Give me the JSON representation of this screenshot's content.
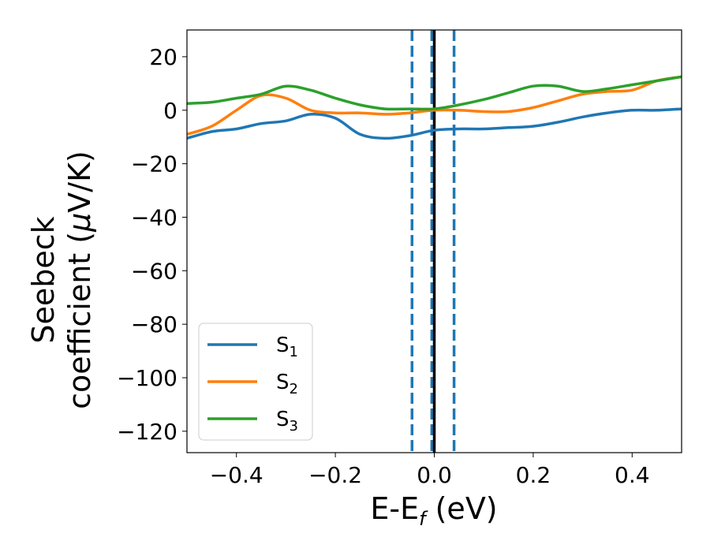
{
  "chart_data": {
    "type": "line",
    "xlabel": {
      "main": "E-E",
      "sub": "f",
      "tail": " (eV)"
    },
    "ylabel": {
      "line1": "Seebeck",
      "line2_prefix": "coefficient  (",
      "mu": "μ",
      "line2_suffix": "V/K)"
    },
    "xlim": [
      -0.5,
      0.5
    ],
    "ylim": [
      -128,
      30
    ],
    "x_ticks": [
      -0.4,
      -0.2,
      0.0,
      0.2,
      0.4
    ],
    "x_tick_labels": [
      "−0.4",
      "−0.2",
      "0.0",
      "0.2",
      "0.4"
    ],
    "y_ticks": [
      20,
      0,
      -20,
      -40,
      -60,
      -80,
      -100,
      -120
    ],
    "y_tick_labels": [
      "20",
      "0",
      "−20",
      "−40",
      "−60",
      "−80",
      "−100",
      "−120"
    ],
    "grid": false,
    "legend_position": "lower-left",
    "vertical_lines": [
      {
        "x": -0.045,
        "style": "dashed",
        "color": "#1f77b4"
      },
      {
        "x": -0.005,
        "style": "dashed",
        "color": "#1f77b4"
      },
      {
        "x": 0.0,
        "style": "solid",
        "color": "#000000"
      },
      {
        "x": 0.04,
        "style": "dashed",
        "color": "#1f77b4"
      }
    ],
    "series": [
      {
        "name": "S",
        "sub": "1",
        "color": "#1f77b4",
        "x": [
          -0.5,
          -0.45,
          -0.4,
          -0.35,
          -0.3,
          -0.25,
          -0.2,
          -0.15,
          -0.1,
          -0.05,
          0.0,
          0.05,
          0.1,
          0.15,
          0.2,
          0.25,
          0.3,
          0.35,
          0.4,
          0.45,
          0.5
        ],
        "y": [
          -10.5,
          -8,
          -7,
          -5,
          -4,
          -1.5,
          -3,
          -9,
          -10.5,
          -9.5,
          -7.5,
          -7,
          -7,
          -6.5,
          -6,
          -4.5,
          -2.5,
          -1,
          0,
          0,
          0.5
        ]
      },
      {
        "name": "S",
        "sub": "2",
        "color": "#ff7f0e",
        "x": [
          -0.5,
          -0.45,
          -0.4,
          -0.35,
          -0.3,
          -0.25,
          -0.2,
          -0.15,
          -0.1,
          -0.05,
          0.0,
          0.05,
          0.1,
          0.15,
          0.2,
          0.25,
          0.3,
          0.35,
          0.4,
          0.45,
          0.5
        ],
        "y": [
          -9,
          -6,
          0,
          5.5,
          4.5,
          0,
          -1,
          -1,
          -1.5,
          -1,
          0,
          0,
          -0.5,
          -0.5,
          1,
          3.5,
          6,
          7,
          7.5,
          11,
          12.5
        ]
      },
      {
        "name": "S",
        "sub": "3",
        "color": "#2ca02c",
        "x": [
          -0.5,
          -0.45,
          -0.4,
          -0.35,
          -0.3,
          -0.25,
          -0.2,
          -0.15,
          -0.1,
          -0.05,
          0.0,
          0.05,
          0.1,
          0.15,
          0.2,
          0.25,
          0.3,
          0.35,
          0.4,
          0.45,
          0.5
        ],
        "y": [
          2.5,
          3,
          4.5,
          6,
          9,
          7.5,
          4.5,
          2,
          0.5,
          0.5,
          0.5,
          2,
          4,
          6.5,
          9,
          9,
          7,
          8,
          9.5,
          11,
          12.5
        ]
      }
    ]
  }
}
